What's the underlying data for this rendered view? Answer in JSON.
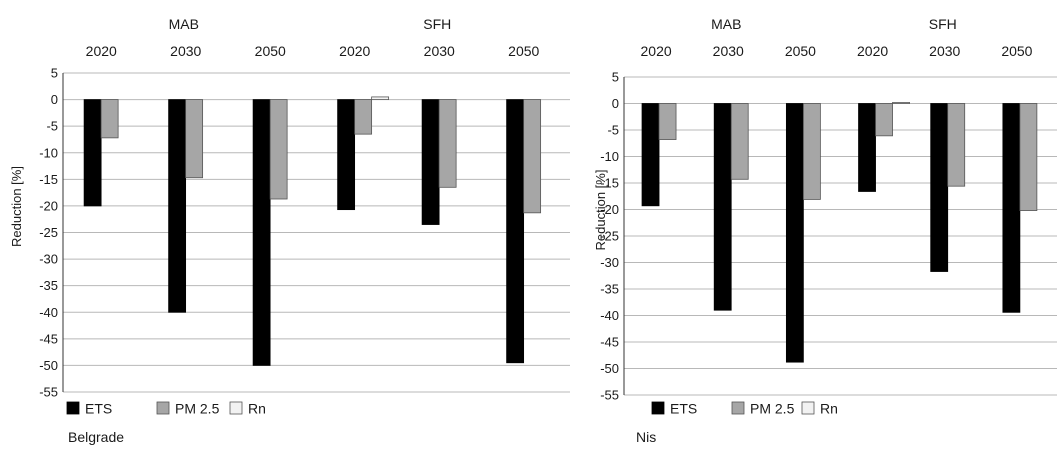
{
  "colors": {
    "ets": "#000000",
    "pm25": "#a6a6a6",
    "rn": "#f2f2f2",
    "grid": "#b8b8b8",
    "axis": "#333333",
    "text": "#1a1a1a"
  },
  "chart_data": [
    {
      "type": "bar",
      "ylabel": "Reduction [%]",
      "ylim": [
        -55,
        5
      ],
      "yticks": [
        5,
        0,
        -5,
        -10,
        -15,
        -20,
        -25,
        -30,
        -35,
        -40,
        -45,
        -50,
        -55
      ],
      "groups": [
        "MAB",
        "SFH"
      ],
      "categories": [
        "2020",
        "2030",
        "2050",
        "2020",
        "2030",
        "2050"
      ],
      "series": [
        {
          "name": "ETS",
          "values": [
            -20,
            -40,
            -50,
            -20.7,
            -23.5,
            -49.5
          ]
        },
        {
          "name": "PM 2.5",
          "values": [
            -7.2,
            -14.7,
            -18.7,
            -6.5,
            -16.5,
            -21.3
          ]
        },
        {
          "name": "Rn",
          "values": [
            0,
            0,
            0,
            0.5,
            0,
            0
          ]
        }
      ],
      "caption": "Belgrade",
      "grid": true,
      "legend_position": "bottom-left"
    },
    {
      "type": "bar",
      "ylabel": "Reduction [%]",
      "ylim": [
        -55,
        5
      ],
      "yticks": [
        5,
        0,
        -5,
        -10,
        -15,
        -20,
        -25,
        -30,
        -35,
        -40,
        -45,
        -50,
        -55
      ],
      "groups": [
        "MAB",
        "SFH"
      ],
      "categories": [
        "2020",
        "2030",
        "2050",
        "2020",
        "2030",
        "2050"
      ],
      "series": [
        {
          "name": "ETS",
          "values": [
            -19.3,
            -39,
            -48.8,
            -16.6,
            -31.7,
            -39.4
          ]
        },
        {
          "name": "PM 2.5",
          "values": [
            -6.8,
            -14.3,
            -18.1,
            -6.1,
            -15.6,
            -20.2
          ]
        },
        {
          "name": "Rn",
          "values": [
            0,
            0,
            0,
            0.2,
            0,
            0
          ]
        }
      ],
      "caption": "Nis",
      "grid": true,
      "legend_position": "bottom-left"
    }
  ]
}
